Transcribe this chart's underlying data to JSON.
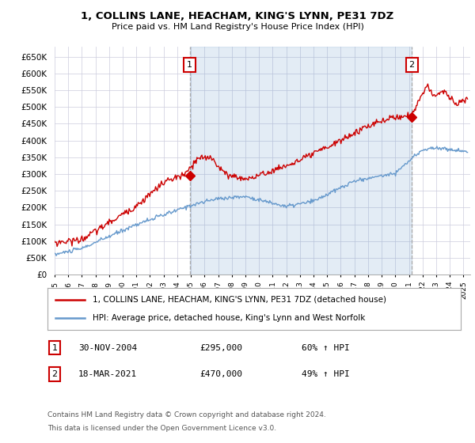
{
  "title": "1, COLLINS LANE, HEACHAM, KING'S LYNN, PE31 7DZ",
  "subtitle": "Price paid vs. HM Land Registry's House Price Index (HPI)",
  "legend_line1": "1, COLLINS LANE, HEACHAM, KING'S LYNN, PE31 7DZ (detached house)",
  "legend_line2": "HPI: Average price, detached house, King's Lynn and West Norfolk",
  "footer1": "Contains HM Land Registry data © Crown copyright and database right 2024.",
  "footer2": "This data is licensed under the Open Government Licence v3.0.",
  "annotation1_label": "1",
  "annotation1_date": "30-NOV-2004",
  "annotation1_price": "£295,000",
  "annotation1_hpi": "60% ↑ HPI",
  "annotation2_label": "2",
  "annotation2_date": "18-MAR-2021",
  "annotation2_price": "£470,000",
  "annotation2_hpi": "49% ↑ HPI",
  "red_color": "#cc0000",
  "blue_color": "#6699cc",
  "bg_shade_color": "#ddeeff",
  "ylim_min": 0,
  "ylim_max": 680000,
  "yticks": [
    0,
    50000,
    100000,
    150000,
    200000,
    250000,
    300000,
    350000,
    400000,
    450000,
    500000,
    550000,
    600000,
    650000
  ],
  "sale1_x": 2004.92,
  "sale1_y": 295000,
  "sale2_x": 2021.21,
  "sale2_y": 470000,
  "xmin": 1995,
  "xmax": 2025.5
}
